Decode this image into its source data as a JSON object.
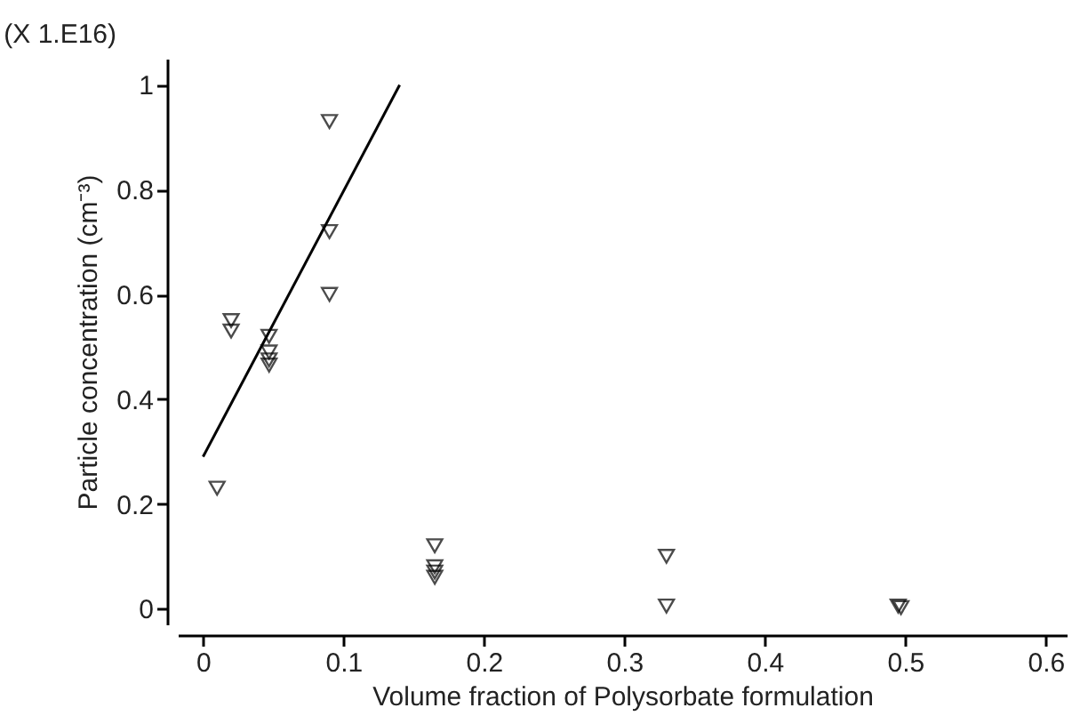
{
  "chart_data": {
    "type": "scatter",
    "xlabel": "Volume fraction of Polysorbate formulation",
    "ylabel": "Particle concentration (cm⁻³)",
    "annotations": [
      "(X 1.E16)"
    ],
    "xlim": [
      -0.018,
      0.615
    ],
    "ylim": [
      -0.03,
      1.05
    ],
    "xticks": [
      0,
      0.1,
      0.2,
      0.3,
      0.4,
      0.5,
      0.6
    ],
    "yticks": [
      0,
      0.2,
      0.4,
      0.6,
      0.8,
      1
    ],
    "grid": false,
    "marker": "triangle",
    "series": [
      {
        "color": "#000000",
        "x": [
          0.01,
          0.02,
          0.02,
          0.047,
          0.047,
          0.047,
          0.047,
          0.09,
          0.09,
          0.09,
          0.165,
          0.165,
          0.165,
          0.165,
          0.33,
          0.33,
          0.495,
          0.497
        ],
        "values": [
          0.23,
          0.55,
          0.53,
          0.52,
          0.49,
          0.475,
          0.465,
          0.93,
          0.72,
          0.6,
          0.12,
          0.08,
          0.07,
          0.06,
          0.1,
          0.005,
          0.005,
          0.002
        ]
      },
      {
        "type": "line",
        "color": "#000000",
        "x": [
          0,
          0.14
        ],
        "values": [
          0.29,
          1.0
        ],
        "marker": "none",
        "line_style": "solid"
      }
    ]
  }
}
